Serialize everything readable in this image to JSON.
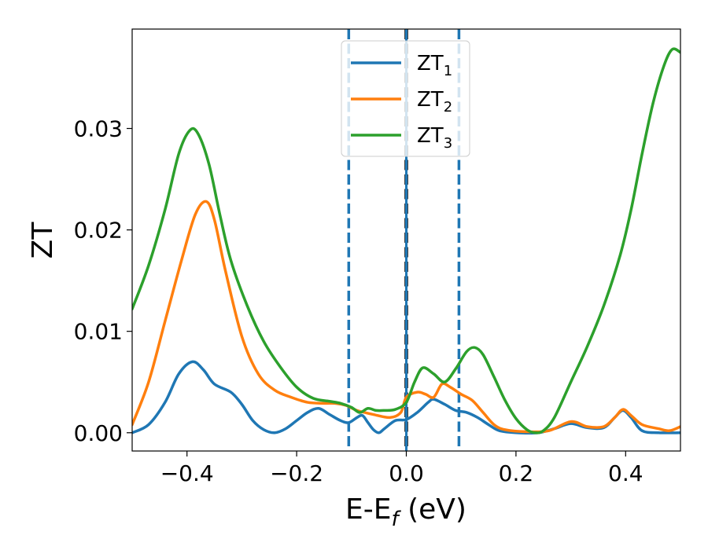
{
  "chart_data": {
    "type": "line",
    "xlabel": "E-E",
    "xlabel_sub": "f",
    "xlabel_unit": " (eV)",
    "ylabel": "ZT",
    "xlim": [
      -0.5,
      0.5
    ],
    "ylim": [
      -0.0018,
      0.0398
    ],
    "xticks": [
      -0.4,
      -0.2,
      0.0,
      0.2,
      0.4
    ],
    "xtick_labels": [
      "−0.4",
      "−0.2",
      "0.0",
      "0.2",
      "0.4"
    ],
    "yticks": [
      0.0,
      0.01,
      0.02,
      0.03
    ],
    "ytick_labels": [
      "0.00",
      "0.01",
      "0.02",
      "0.03"
    ],
    "grid": false,
    "legend_position": "top-center",
    "vlines": [
      {
        "x": -0.105,
        "style": "dashed",
        "color": "#1f77b4"
      },
      {
        "x": 0.0,
        "style": "dashed-black",
        "color": "#000000"
      },
      {
        "x": 0.0,
        "style": "solid",
        "color": "#1f77b4"
      },
      {
        "x": 0.096,
        "style": "dashed",
        "color": "#1f77b4"
      }
    ],
    "series": [
      {
        "name": "ZT",
        "name_sub": "1",
        "color": "#1f77b4",
        "points": [
          [
            -0.5,
            0.0
          ],
          [
            -0.47,
            0.0008
          ],
          [
            -0.44,
            0.003
          ],
          [
            -0.415,
            0.0058
          ],
          [
            -0.39,
            0.007
          ],
          [
            -0.37,
            0.0062
          ],
          [
            -0.35,
            0.0048
          ],
          [
            -0.32,
            0.004
          ],
          [
            -0.3,
            0.0028
          ],
          [
            -0.28,
            0.0012
          ],
          [
            -0.26,
            0.0003
          ],
          [
            -0.24,
            0.0
          ],
          [
            -0.22,
            0.0004
          ],
          [
            -0.2,
            0.0012
          ],
          [
            -0.18,
            0.002
          ],
          [
            -0.16,
            0.0024
          ],
          [
            -0.14,
            0.0018
          ],
          [
            -0.12,
            0.0012
          ],
          [
            -0.105,
            0.001
          ],
          [
            -0.09,
            0.0015
          ],
          [
            -0.08,
            0.0017
          ],
          [
            -0.07,
            0.001
          ],
          [
            -0.06,
            0.0003
          ],
          [
            -0.05,
            0.0
          ],
          [
            -0.04,
            0.0004
          ],
          [
            -0.02,
            0.0012
          ],
          [
            0.0,
            0.0013
          ],
          [
            0.02,
            0.002
          ],
          [
            0.04,
            0.003
          ],
          [
            0.05,
            0.0033
          ],
          [
            0.07,
            0.0028
          ],
          [
            0.09,
            0.0022
          ],
          [
            0.11,
            0.002
          ],
          [
            0.13,
            0.0015
          ],
          [
            0.15,
            0.0008
          ],
          [
            0.17,
            0.0002
          ],
          [
            0.2,
            0.0
          ],
          [
            0.24,
            0.0
          ],
          [
            0.27,
            0.0004
          ],
          [
            0.3,
            0.0009
          ],
          [
            0.33,
            0.0005
          ],
          [
            0.36,
            0.0005
          ],
          [
            0.38,
            0.0015
          ],
          [
            0.395,
            0.0022
          ],
          [
            0.41,
            0.0015
          ],
          [
            0.43,
            0.0002
          ],
          [
            0.46,
            0.0
          ],
          [
            0.5,
            0.0
          ]
        ]
      },
      {
        "name": "ZT",
        "name_sub": "2",
        "color": "#ff7f0e",
        "points": [
          [
            -0.5,
            0.0008
          ],
          [
            -0.47,
            0.005
          ],
          [
            -0.44,
            0.011
          ],
          [
            -0.41,
            0.017
          ],
          [
            -0.385,
            0.0215
          ],
          [
            -0.365,
            0.0228
          ],
          [
            -0.35,
            0.021
          ],
          [
            -0.33,
            0.016
          ],
          [
            -0.3,
            0.0095
          ],
          [
            -0.27,
            0.0058
          ],
          [
            -0.24,
            0.0042
          ],
          [
            -0.21,
            0.0035
          ],
          [
            -0.18,
            0.003
          ],
          [
            -0.15,
            0.0029
          ],
          [
            -0.13,
            0.0029
          ],
          [
            -0.11,
            0.0027
          ],
          [
            -0.09,
            0.0022
          ],
          [
            -0.06,
            0.0018
          ],
          [
            -0.03,
            0.0015
          ],
          [
            -0.01,
            0.002
          ],
          [
            0.0,
            0.0035
          ],
          [
            0.02,
            0.004
          ],
          [
            0.035,
            0.0038
          ],
          [
            0.05,
            0.0035
          ],
          [
            0.065,
            0.0048
          ],
          [
            0.08,
            0.0045
          ],
          [
            0.1,
            0.0038
          ],
          [
            0.12,
            0.0032
          ],
          [
            0.14,
            0.002
          ],
          [
            0.16,
            0.0008
          ],
          [
            0.18,
            0.0003
          ],
          [
            0.22,
            0.0001
          ],
          [
            0.26,
            0.0002
          ],
          [
            0.3,
            0.0011
          ],
          [
            0.33,
            0.0006
          ],
          [
            0.36,
            0.0006
          ],
          [
            0.38,
            0.0015
          ],
          [
            0.395,
            0.0023
          ],
          [
            0.41,
            0.0017
          ],
          [
            0.43,
            0.0008
          ],
          [
            0.46,
            0.0004
          ],
          [
            0.48,
            0.0002
          ],
          [
            0.5,
            0.0006
          ]
        ]
      },
      {
        "name": "ZT",
        "name_sub": "3",
        "color": "#2ca02c",
        "points": [
          [
            -0.5,
            0.0122
          ],
          [
            -0.47,
            0.0165
          ],
          [
            -0.44,
            0.022
          ],
          [
            -0.415,
            0.0275
          ],
          [
            -0.395,
            0.0298
          ],
          [
            -0.38,
            0.0295
          ],
          [
            -0.36,
            0.0265
          ],
          [
            -0.34,
            0.0215
          ],
          [
            -0.32,
            0.017
          ],
          [
            -0.29,
            0.0125
          ],
          [
            -0.26,
            0.009
          ],
          [
            -0.23,
            0.0065
          ],
          [
            -0.2,
            0.0045
          ],
          [
            -0.17,
            0.0034
          ],
          [
            -0.14,
            0.0031
          ],
          [
            -0.12,
            0.0029
          ],
          [
            -0.1,
            0.0025
          ],
          [
            -0.085,
            0.002
          ],
          [
            -0.07,
            0.0024
          ],
          [
            -0.055,
            0.0022
          ],
          [
            -0.04,
            0.0022
          ],
          [
            -0.02,
            0.0023
          ],
          [
            0.0,
            0.003
          ],
          [
            0.015,
            0.005
          ],
          [
            0.03,
            0.0064
          ],
          [
            0.05,
            0.0058
          ],
          [
            0.07,
            0.005
          ],
          [
            0.09,
            0.0063
          ],
          [
            0.11,
            0.008
          ],
          [
            0.125,
            0.0084
          ],
          [
            0.14,
            0.0077
          ],
          [
            0.16,
            0.0055
          ],
          [
            0.18,
            0.0032
          ],
          [
            0.2,
            0.0014
          ],
          [
            0.22,
            0.0003
          ],
          [
            0.235,
            0.0
          ],
          [
            0.25,
            0.0002
          ],
          [
            0.27,
            0.0015
          ],
          [
            0.3,
            0.005
          ],
          [
            0.33,
            0.0085
          ],
          [
            0.36,
            0.0125
          ],
          [
            0.39,
            0.0175
          ],
          [
            0.41,
            0.022
          ],
          [
            0.43,
            0.0275
          ],
          [
            0.45,
            0.0325
          ],
          [
            0.47,
            0.0362
          ],
          [
            0.485,
            0.0378
          ],
          [
            0.5,
            0.0375
          ]
        ]
      }
    ]
  }
}
